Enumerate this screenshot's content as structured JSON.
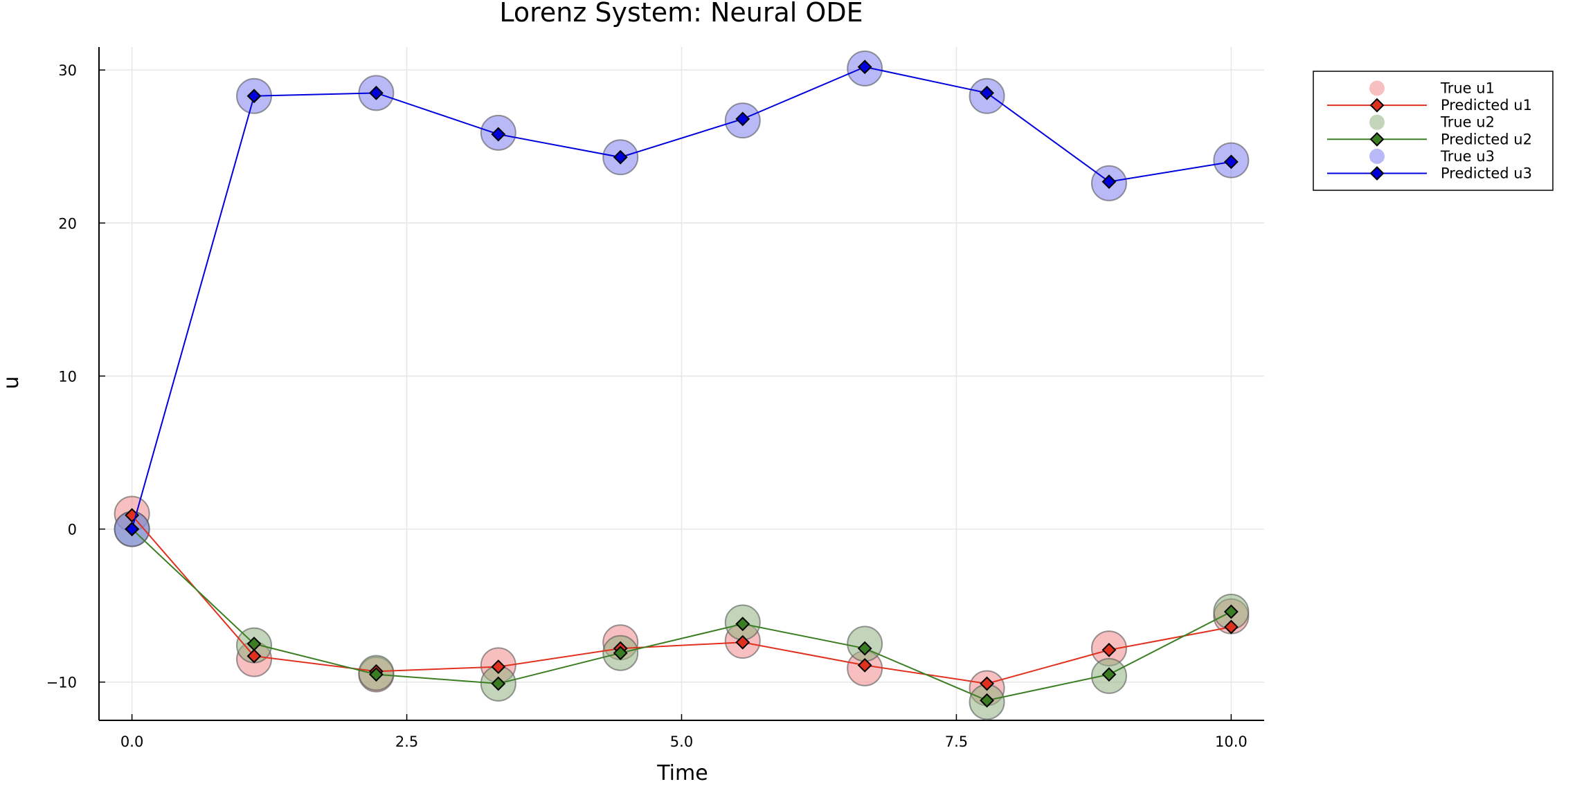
{
  "chart_data": {
    "type": "scatter",
    "title": "Lorenz System: Neural ODE",
    "xlabel": "Time",
    "ylabel": "u",
    "xlim": [
      -0.3,
      10.3
    ],
    "ylim": [
      -12.5,
      31.5
    ],
    "xticks": [
      0.0,
      2.5,
      5.0,
      7.5,
      10.0
    ],
    "xtick_labels": [
      "0.0",
      "2.5",
      "5.0",
      "7.5",
      "10.0"
    ],
    "yticks": [
      -10,
      0,
      10,
      20,
      30
    ],
    "ytick_labels": [
      "−10",
      "0",
      "10",
      "20",
      "30"
    ],
    "grid": true,
    "legend_position": "top-right",
    "x": [
      0.0,
      1.111,
      2.222,
      3.333,
      4.444,
      5.556,
      6.667,
      7.778,
      8.889,
      10.0
    ],
    "series": [
      {
        "name": "True u1",
        "kind": "scatter",
        "color": "#f08b8b",
        "values": [
          1.0,
          -8.5,
          -9.5,
          -8.9,
          -7.4,
          -7.3,
          -9.1,
          -10.4,
          -7.8,
          -5.7
        ]
      },
      {
        "name": "Predicted u1",
        "kind": "line",
        "color": "#e0301e",
        "values": [
          0.9,
          -8.3,
          -9.3,
          -9.0,
          -7.8,
          -7.4,
          -8.9,
          -10.1,
          -7.9,
          -6.4
        ]
      },
      {
        "name": "True u2",
        "kind": "scatter",
        "color": "#8fb382",
        "values": [
          0.0,
          -7.6,
          -9.4,
          -10.1,
          -8.1,
          -6.1,
          -7.5,
          -11.3,
          -9.6,
          -5.4
        ]
      },
      {
        "name": "Predicted u2",
        "kind": "line",
        "color": "#3a7d22",
        "values": [
          0.0,
          -7.5,
          -9.5,
          -10.1,
          -8.1,
          -6.2,
          -7.8,
          -11.2,
          -9.5,
          -5.4
        ]
      },
      {
        "name": "True u3",
        "kind": "scatter",
        "color": "#8080f0",
        "values": [
          0.0,
          28.3,
          28.5,
          25.9,
          24.3,
          26.7,
          30.1,
          28.3,
          22.6,
          24.1
        ]
      },
      {
        "name": "Predicted u3",
        "kind": "line",
        "color": "#0000dd",
        "values": [
          0.0,
          28.3,
          28.5,
          25.8,
          24.3,
          26.8,
          30.2,
          28.5,
          22.7,
          24.0
        ]
      }
    ]
  }
}
